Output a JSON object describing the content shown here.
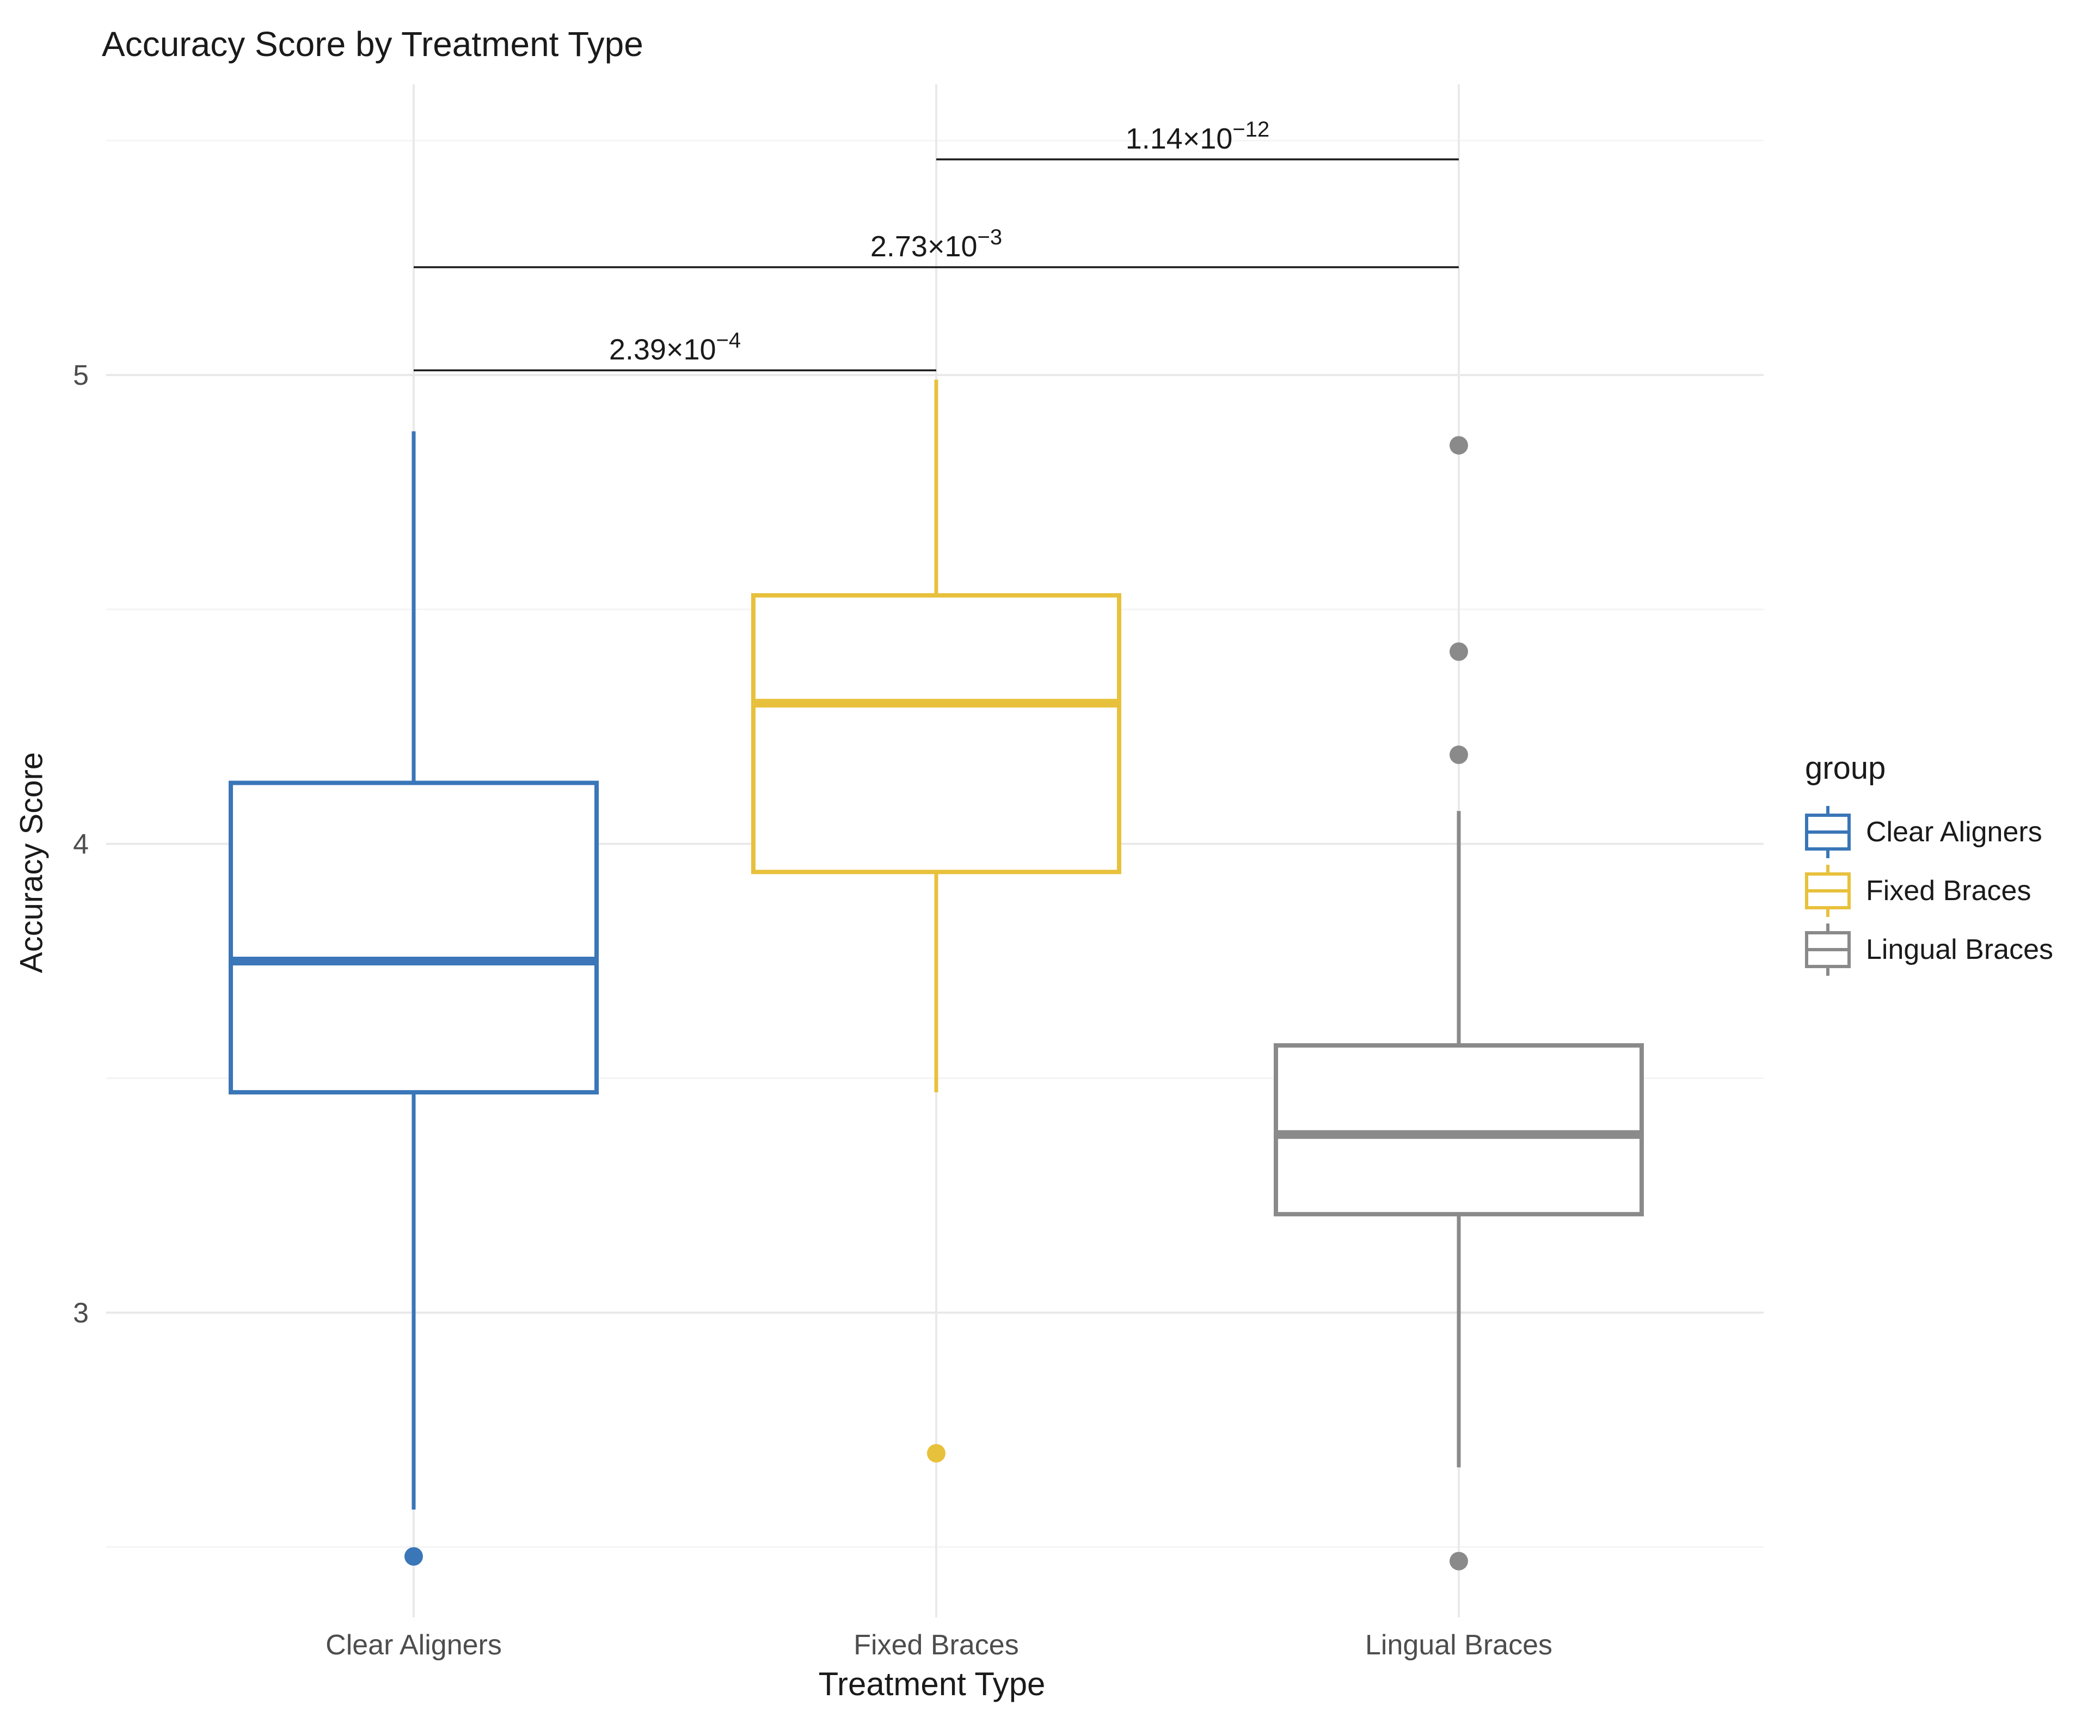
{
  "title": "Accuracy Score by Treatment Type",
  "x_axis": {
    "title": "Treatment Type",
    "categories": [
      "Clear Aligners",
      "Fixed Braces",
      "Lingual Braces"
    ]
  },
  "y_axis": {
    "title": "Accuracy Score",
    "tick_labels": [
      "3",
      "4",
      "5"
    ],
    "ticks": [
      3,
      4,
      5
    ],
    "minor_ticks": [
      2.5,
      3.5,
      4.5,
      5.5
    ],
    "limits": [
      2.35,
      5.62
    ]
  },
  "legend": {
    "title": "group",
    "entries": [
      {
        "label": "Clear Aligners",
        "color": "#3A76B8"
      },
      {
        "label": "Fixed Braces",
        "color": "#E8C13C"
      },
      {
        "label": "Lingual Braces",
        "color": "#8A8A8A"
      }
    ]
  },
  "colors": {
    "background": "#FFFFFF",
    "grid_major": "#E9E9E9",
    "grid_minor": "#F4F4F4",
    "tick_label": "#4D4D4D",
    "annotation": "#1A1A1A",
    "title_text": "#1A1A1A"
  },
  "chart_data": {
    "type": "boxplot",
    "title": "Accuracy Score by Treatment Type",
    "xlabel": "Treatment Type",
    "ylabel": "Accuracy Score",
    "ylim": [
      2.35,
      5.62
    ],
    "grid": "major-and-minor-horizontal, vertical-category",
    "legend_position": "right",
    "categories": [
      "Clear Aligners",
      "Fixed Braces",
      "Lingual Braces"
    ],
    "series": [
      {
        "name": "Clear Aligners",
        "color": "#3A76B8",
        "whisker_low": 2.58,
        "q1": 3.47,
        "median": 3.75,
        "q3": 4.13,
        "whisker_high": 4.88,
        "outliers": [
          2.48
        ]
      },
      {
        "name": "Fixed Braces",
        "color": "#E8C13C",
        "whisker_low": 3.47,
        "q1": 3.94,
        "median": 4.3,
        "q3": 4.53,
        "whisker_high": 4.99,
        "outliers": [
          2.7
        ]
      },
      {
        "name": "Lingual Braces",
        "color": "#8A8A8A",
        "whisker_low": 2.67,
        "q1": 3.21,
        "median": 3.38,
        "q3": 3.57,
        "whisker_high": 4.07,
        "outliers": [
          4.85,
          4.41,
          4.19,
          2.47
        ]
      }
    ],
    "significance_brackets": [
      {
        "from": "Clear Aligners",
        "to": "Fixed Braces",
        "label_base": "2.39×10",
        "label_exponent": "−4",
        "y": 5.01
      },
      {
        "from": "Clear Aligners",
        "to": "Lingual Braces",
        "label_base": "2.73×10",
        "label_exponent": "−3",
        "y": 5.23
      },
      {
        "from": "Fixed Braces",
        "to": "Lingual Braces",
        "label_base": "1.14×10",
        "label_exponent": "−12",
        "y": 5.46
      }
    ]
  }
}
